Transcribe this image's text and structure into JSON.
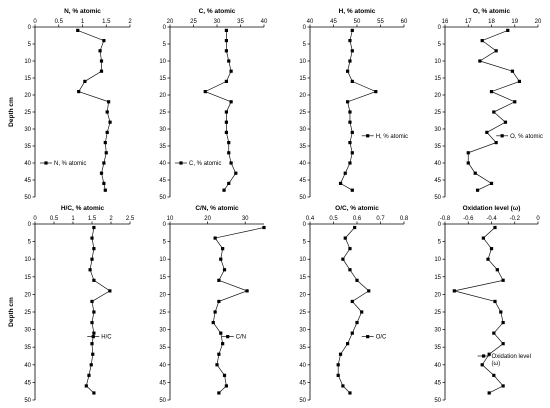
{
  "chart_data": [
    {
      "type": "line",
      "title": "N, % atomic",
      "ylabel": "Depth cm",
      "xlim": [
        0,
        2
      ],
      "xticks": [
        "0",
        "0.5",
        "1",
        "1.5",
        "2"
      ],
      "ylim": [
        0,
        50
      ],
      "yticks": [
        "0",
        "5",
        "10",
        "15",
        "20",
        "25",
        "30",
        "35",
        "40",
        "45",
        "50"
      ],
      "legend": "N, % atomic",
      "legend_position": "bottom-left",
      "series": [
        {
          "name": "N, % atomic",
          "x": [
            0.9,
            1.45,
            1.37,
            1.4,
            1.4,
            1.05,
            0.92,
            1.55,
            1.52,
            1.58,
            1.52,
            1.48,
            1.5,
            1.45,
            1.4,
            1.45,
            1.48
          ],
          "y": [
            1,
            4,
            7,
            10,
            13,
            16,
            19,
            22,
            25,
            28,
            31,
            34,
            37,
            40,
            43,
            46,
            48
          ]
        }
      ]
    },
    {
      "type": "line",
      "title": "C, % atomic",
      "ylabel": "",
      "xlim": [
        20,
        40
      ],
      "xticks": [
        "20",
        "25",
        "30",
        "35",
        "40"
      ],
      "ylim": [
        0,
        50
      ],
      "yticks": [
        "0",
        "5",
        "10",
        "15",
        "20",
        "25",
        "30",
        "35",
        "40",
        "45",
        "50"
      ],
      "legend": "C, % atomic",
      "legend_position": "bottom-left",
      "series": [
        {
          "name": "C, % atomic",
          "x": [
            32.0,
            32.0,
            32.0,
            32.5,
            33.0,
            32.0,
            27.5,
            33.0,
            32.0,
            32.0,
            32.0,
            32.5,
            32.5,
            33.0,
            34.0,
            32.5,
            31.5
          ],
          "y": [
            1,
            4,
            7,
            10,
            13,
            16,
            19,
            22,
            25,
            28,
            31,
            34,
            37,
            40,
            43,
            46,
            48
          ]
        }
      ]
    },
    {
      "type": "line",
      "title": "H, % atomic",
      "ylabel": "",
      "xlim": [
        40,
        60
      ],
      "xticks": [
        "40",
        "45",
        "50",
        "55",
        "60"
      ],
      "ylim": [
        0,
        50
      ],
      "yticks": [
        "0",
        "5",
        "10",
        "15",
        "20",
        "25",
        "30",
        "35",
        "40",
        "45",
        "50"
      ],
      "legend": "H, % atomic",
      "legend_position": "middle-right",
      "series": [
        {
          "name": "H, % atomic",
          "x": [
            49.0,
            48.5,
            49.0,
            48.5,
            48.0,
            49.0,
            54.0,
            48.0,
            48.5,
            48.5,
            49.0,
            48.5,
            49.0,
            48.5,
            47.5,
            46.5,
            49.0
          ],
          "y": [
            1,
            4,
            7,
            10,
            13,
            16,
            19,
            22,
            25,
            28,
            31,
            34,
            37,
            40,
            43,
            46,
            48
          ]
        }
      ]
    },
    {
      "type": "line",
      "title": "O, % atomic",
      "ylabel": "",
      "xlim": [
        16,
        20
      ],
      "xticks": [
        "16",
        "17",
        "18",
        "19",
        "20"
      ],
      "ylim": [
        0,
        50
      ],
      "yticks": [
        "0",
        "5",
        "10",
        "15",
        "20",
        "25",
        "30",
        "35",
        "40",
        "45",
        "50"
      ],
      "legend": "O, % atomic",
      "legend_position": "middle-right",
      "series": [
        {
          "name": "O, % atomic",
          "x": [
            18.7,
            17.6,
            18.2,
            17.5,
            18.9,
            19.2,
            18.0,
            19.0,
            18.1,
            18.6,
            17.8,
            18.2,
            17.0,
            17.0,
            17.3,
            18.0,
            17.4
          ],
          "y": [
            1,
            4,
            7,
            10,
            13,
            16,
            19,
            22,
            25,
            28,
            31,
            34,
            37,
            40,
            43,
            46,
            48
          ]
        }
      ]
    },
    {
      "type": "line",
      "title": "H/C, % atomic",
      "ylabel": "Depth cm",
      "xlim": [
        0,
        2.5
      ],
      "xticks": [
        "0",
        "0.5",
        "1",
        "1.5",
        "2",
        "2.5"
      ],
      "ylim": [
        0,
        50
      ],
      "yticks": [
        "0",
        "5",
        "10",
        "15",
        "20",
        "25",
        "30",
        "35",
        "40",
        "45",
        "50"
      ],
      "legend": "H/C",
      "legend_position": "middle-right",
      "series": [
        {
          "name": "H/C",
          "x": [
            1.55,
            1.5,
            1.55,
            1.5,
            1.45,
            1.55,
            1.97,
            1.5,
            1.55,
            1.5,
            1.55,
            1.5,
            1.52,
            1.48,
            1.42,
            1.35,
            1.55
          ],
          "y": [
            1,
            4,
            7,
            10,
            13,
            16,
            19,
            22,
            25,
            28,
            31,
            34,
            37,
            40,
            43,
            46,
            48
          ]
        }
      ]
    },
    {
      "type": "line",
      "title": "C/N, % atomic",
      "ylabel": "",
      "xlim": [
        10,
        35
      ],
      "xticks": [
        "10",
        "20",
        "30"
      ],
      "ylim": [
        0,
        50
      ],
      "yticks": [
        "0",
        "5",
        "10",
        "15",
        "20",
        "25",
        "30",
        "35",
        "40",
        "45",
        "50"
      ],
      "legend": "C/N",
      "legend_position": "middle-right",
      "series": [
        {
          "name": "C/N",
          "x": [
            35.0,
            22.0,
            24.0,
            23.5,
            24.5,
            23.0,
            30.5,
            23.0,
            22.0,
            21.5,
            23.5,
            24.0,
            23.0,
            22.5,
            24.5,
            25.0,
            23.0
          ],
          "y": [
            1,
            4,
            7,
            10,
            13,
            16,
            19,
            22,
            25,
            28,
            31,
            34,
            37,
            40,
            43,
            46,
            48
          ]
        }
      ]
    },
    {
      "type": "line",
      "title": "O/C, % atomic",
      "ylabel": "",
      "xlim": [
        0.4,
        0.8
      ],
      "xticks": [
        "0.4",
        "0.5",
        "0.6",
        "0.7",
        "0.8"
      ],
      "ylim": [
        0,
        50
      ],
      "yticks": [
        "0",
        "5",
        "10",
        "15",
        "20",
        "25",
        "30",
        "35",
        "40",
        "45",
        "50"
      ],
      "legend": "O/C",
      "legend_position": "middle-right",
      "series": [
        {
          "name": "O/C",
          "x": [
            0.59,
            0.55,
            0.57,
            0.54,
            0.57,
            0.6,
            0.65,
            0.58,
            0.62,
            0.6,
            0.58,
            0.56,
            0.53,
            0.52,
            0.52,
            0.54,
            0.57
          ],
          "y": [
            1,
            4,
            7,
            10,
            13,
            16,
            19,
            22,
            25,
            28,
            31,
            34,
            37,
            40,
            43,
            46,
            48
          ]
        }
      ]
    },
    {
      "type": "line",
      "title": "Oxidation level (ω)",
      "ylabel": "",
      "xlim": [
        -0.8,
        0
      ],
      "xticks": [
        "-0.8",
        "-0.6",
        "-0.4",
        "-0.2",
        "0"
      ],
      "ylim": [
        0,
        50
      ],
      "yticks": [
        "0",
        "5",
        "10",
        "15",
        "20",
        "25",
        "30",
        "35",
        "40",
        "45",
        "50"
      ],
      "legend": "Oxidation level (ω)",
      "legend_position": "lower-right",
      "series": [
        {
          "name": "Oxidation level (ω)",
          "x": [
            -0.37,
            -0.47,
            -0.4,
            -0.43,
            -0.35,
            -0.3,
            -0.72,
            -0.37,
            -0.32,
            -0.3,
            -0.38,
            -0.3,
            -0.42,
            -0.48,
            -0.38,
            -0.3,
            -0.42
          ],
          "y": [
            1,
            4,
            7,
            10,
            13,
            16,
            19,
            22,
            25,
            28,
            31,
            34,
            37,
            40,
            43,
            46,
            48
          ]
        }
      ]
    }
  ]
}
